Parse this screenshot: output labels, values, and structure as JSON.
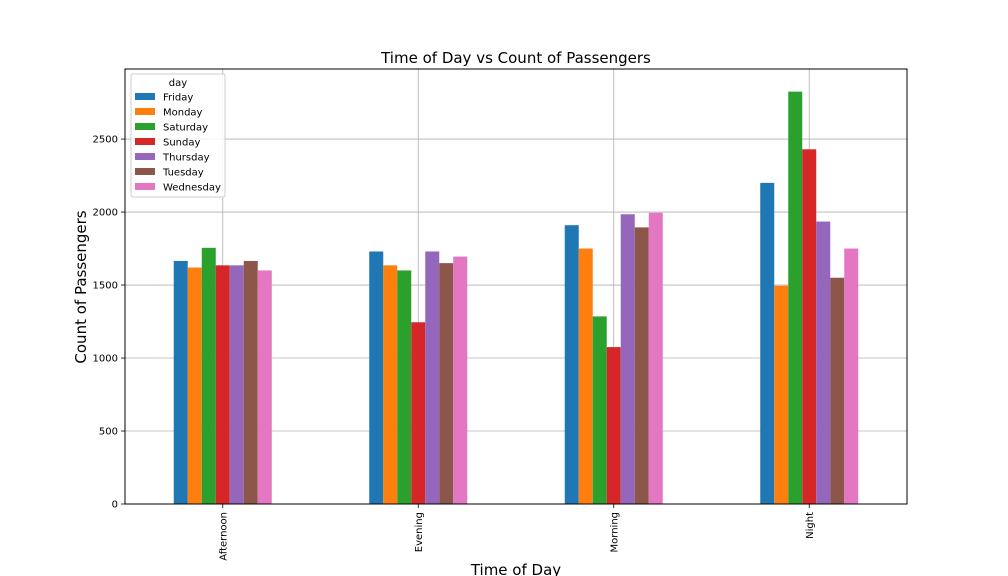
{
  "chart_data": {
    "type": "bar",
    "title": "Time of Day vs Count of Passengers",
    "xlabel": "Time of Day",
    "ylabel": "Count of Passengers",
    "categories": [
      "Afternoon",
      "Evening",
      "Morning",
      "Night"
    ],
    "ylim": [
      0,
      2980
    ],
    "yticks": [
      0,
      500,
      1000,
      1500,
      2000,
      2500
    ],
    "grid": true,
    "legend": {
      "title": "day",
      "placement": "top-left"
    },
    "series": [
      {
        "name": "Friday",
        "color": "#1f77b4",
        "values": [
          1665,
          1730,
          1910,
          2200
        ]
      },
      {
        "name": "Monday",
        "color": "#ff7f0e",
        "values": [
          1620,
          1635,
          1750,
          1495
        ]
      },
      {
        "name": "Saturday",
        "color": "#2ca02c",
        "values": [
          1755,
          1600,
          1285,
          2825
        ]
      },
      {
        "name": "Sunday",
        "color": "#d62728",
        "values": [
          1635,
          1245,
          1075,
          2430
        ]
      },
      {
        "name": "Thursday",
        "color": "#9467bd",
        "values": [
          1635,
          1730,
          1985,
          1935
        ]
      },
      {
        "name": "Tuesday",
        "color": "#8c564b",
        "values": [
          1665,
          1650,
          1895,
          1550
        ]
      },
      {
        "name": "Wednesday",
        "color": "#e377c2",
        "values": [
          1600,
          1695,
          1995,
          1750
        ]
      }
    ]
  }
}
